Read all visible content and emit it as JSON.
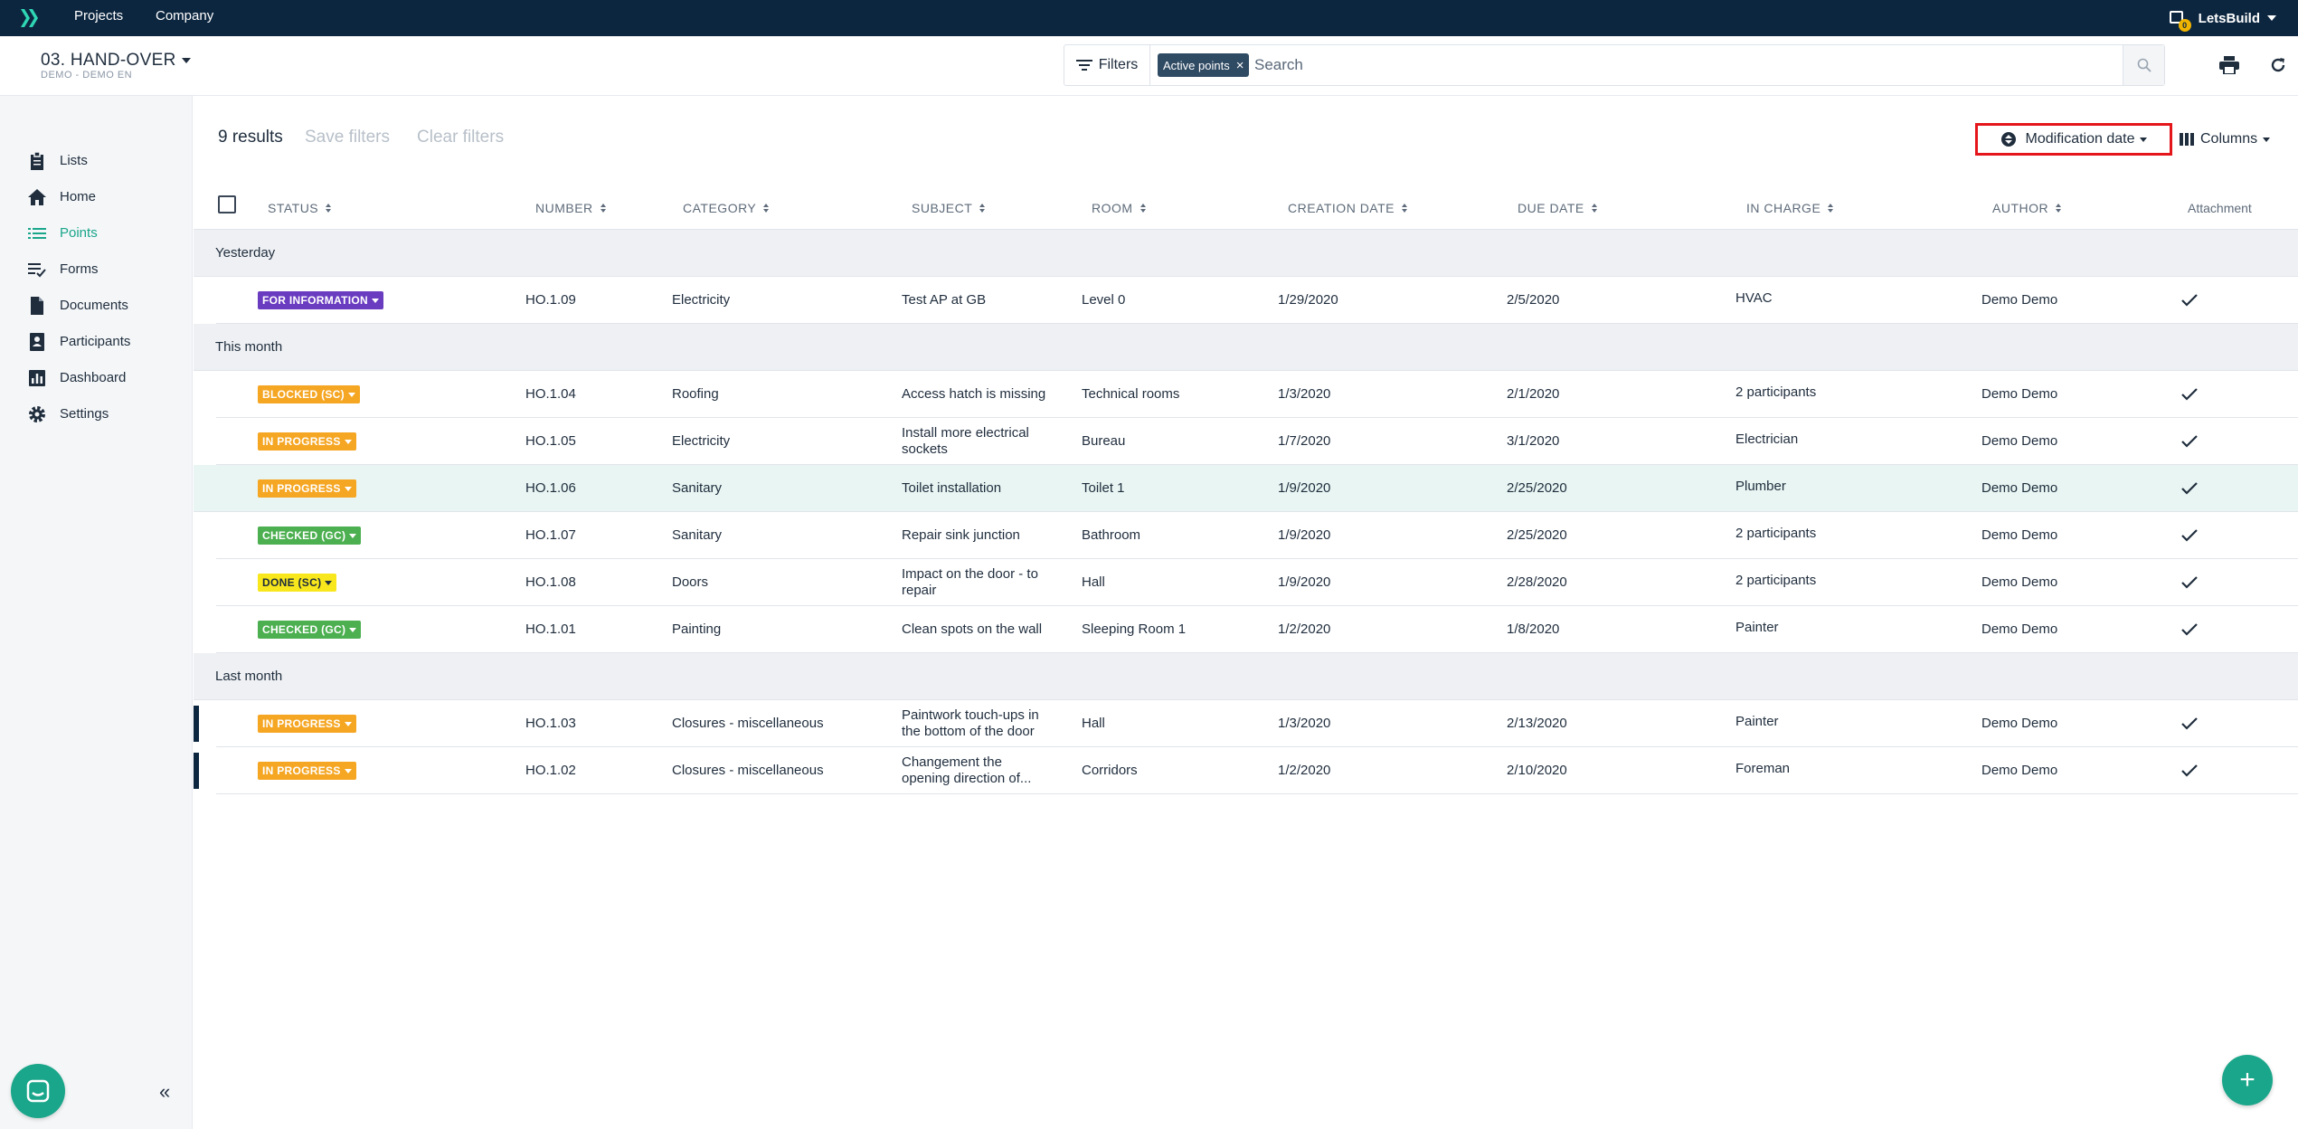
{
  "topbar": {
    "nav": [
      "Projects",
      "Company"
    ],
    "user_name": "LetsBuild",
    "notification_count": "0"
  },
  "project": {
    "name": "03. HAND-OVER",
    "subtitle": "DEMO - DEMO EN"
  },
  "search": {
    "filters_label": "Filters",
    "active_chip": "Active points",
    "placeholder": "Search"
  },
  "sidebar": {
    "items": [
      {
        "label": "Lists",
        "icon": "clipboard-icon"
      },
      {
        "label": "Home",
        "icon": "home-icon"
      },
      {
        "label": "Points",
        "icon": "list-icon"
      },
      {
        "label": "Forms",
        "icon": "checklist-icon"
      },
      {
        "label": "Documents",
        "icon": "document-icon"
      },
      {
        "label": "Participants",
        "icon": "contact-book-icon"
      },
      {
        "label": "Dashboard",
        "icon": "bar-chart-icon"
      },
      {
        "label": "Settings",
        "icon": "gear-icon"
      }
    ],
    "active": "Points"
  },
  "toolbar": {
    "results": "9 results",
    "save_filters": "Save filters",
    "clear_filters": "Clear filters",
    "sort_label": "Modification date",
    "columns_label": "Columns"
  },
  "table": {
    "headers": [
      "STATUS",
      "NUMBER",
      "CATEGORY",
      "SUBJECT",
      "ROOM",
      "CREATION DATE",
      "DUE DATE",
      "IN CHARGE",
      "AUTHOR",
      "Attachment"
    ],
    "groups": [
      "Yesterday",
      "This month",
      "Last month"
    ],
    "rows": [
      {
        "status": "FOR INFORMATION",
        "number": "HO.1.09",
        "category": "Electricity",
        "subject": "Test AP at GB",
        "room": "Level 0",
        "created": "1/29/2020",
        "due": "2/5/2020",
        "in_charge": "HVAC",
        "author": "Demo Demo"
      },
      {
        "status": "BLOCKED (SC)",
        "number": "HO.1.04",
        "category": "Roofing",
        "subject": "Access hatch is missing",
        "room": "Technical rooms",
        "created": "1/3/2020",
        "due": "2/1/2020",
        "in_charge": "2 participants",
        "author": "Demo Demo"
      },
      {
        "status": "IN PROGRESS",
        "number": "HO.1.05",
        "category": "Electricity",
        "subject": "Install more electrical sockets",
        "room": "Bureau",
        "created": "1/7/2020",
        "due": "3/1/2020",
        "in_charge": "Electrician",
        "author": "Demo Demo"
      },
      {
        "status": "IN PROGRESS",
        "number": "HO.1.06",
        "category": "Sanitary",
        "subject": "Toilet installation",
        "room": "Toilet 1",
        "created": "1/9/2020",
        "due": "2/25/2020",
        "in_charge": "Plumber",
        "author": "Demo Demo"
      },
      {
        "status": "CHECKED (GC)",
        "number": "HO.1.07",
        "category": "Sanitary",
        "subject": "Repair sink junction",
        "room": "Bathroom",
        "created": "1/9/2020",
        "due": "2/25/2020",
        "in_charge": "2 participants",
        "author": "Demo Demo"
      },
      {
        "status": "DONE (SC)",
        "number": "HO.1.08",
        "category": "Doors",
        "subject": "Impact on the door - to repair",
        "room": "Hall",
        "created": "1/9/2020",
        "due": "2/28/2020",
        "in_charge": "2 participants",
        "author": "Demo Demo"
      },
      {
        "status": "CHECKED (GC)",
        "number": "HO.1.01",
        "category": "Painting",
        "subject": "Clean spots on the wall",
        "room": "Sleeping Room 1",
        "created": "1/2/2020",
        "due": "1/8/2020",
        "in_charge": "Painter",
        "author": "Demo Demo"
      },
      {
        "status": "IN PROGRESS",
        "number": "HO.1.03",
        "category": "Closures - miscellaneous",
        "subject": "Paintwork touch-ups in the bottom of the door",
        "room": "Hall",
        "created": "1/3/2020",
        "due": "2/13/2020",
        "in_charge": "Painter",
        "author": "Demo Demo"
      },
      {
        "status": "IN PROGRESS",
        "number": "HO.1.02",
        "category": "Closures - miscellaneous",
        "subject": "Changement the opening direction of...",
        "room": "Corridors",
        "created": "1/2/2020",
        "due": "2/10/2020",
        "in_charge": "Foreman",
        "author": "Demo Demo"
      }
    ]
  },
  "colors": {
    "nav_bg": "#0c2640",
    "accent": "#1aa68a",
    "for_information": "#6a3cc0",
    "blocked": "#f5a623",
    "in_progress": "#f5a623",
    "checked": "#4caf50",
    "done": "#f8e71c"
  }
}
